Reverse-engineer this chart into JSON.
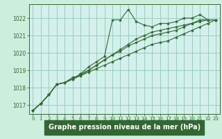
{
  "bg_color": "#cceedd",
  "plot_bg_color": "#d4f0ec",
  "grid_color": "#99ccbb",
  "line_color": "#336633",
  "marker_color": "#336633",
  "xlabel": "Graphe pression niveau de la mer (hPa)",
  "xlabel_fontsize": 7,
  "xlabel_bg": "#33aa55",
  "xlim": [
    -0.5,
    23.5
  ],
  "ylim": [
    1016.5,
    1022.8
  ],
  "yticks": [
    1017,
    1018,
    1019,
    1020,
    1021,
    1022
  ],
  "xticks": [
    0,
    1,
    2,
    3,
    4,
    5,
    6,
    7,
    8,
    9,
    10,
    11,
    12,
    13,
    14,
    15,
    16,
    17,
    18,
    19,
    20,
    21,
    22,
    23
  ],
  "series": [
    [
      1016.7,
      1017.1,
      1017.6,
      1018.2,
      1018.3,
      1018.5,
      1018.8,
      1019.2,
      1019.5,
      1019.8,
      1021.9,
      1021.9,
      1022.5,
      1021.8,
      1021.6,
      1021.5,
      1021.7,
      1021.7,
      1021.8,
      1022.0,
      1022.0,
      1022.2,
      1021.9,
      1021.9
    ],
    [
      1016.7,
      1017.1,
      1017.6,
      1018.2,
      1018.3,
      1018.5,
      1018.8,
      1019.0,
      1019.3,
      1019.6,
      1019.9,
      1020.2,
      1020.5,
      1020.8,
      1021.0,
      1021.2,
      1021.3,
      1021.4,
      1021.5,
      1021.6,
      1021.7,
      1021.8,
      1021.9,
      1021.9
    ],
    [
      1016.7,
      1017.1,
      1017.6,
      1018.2,
      1018.3,
      1018.5,
      1018.7,
      1018.9,
      1019.1,
      1019.3,
      1019.5,
      1019.7,
      1019.9,
      1020.1,
      1020.3,
      1020.5,
      1020.6,
      1020.7,
      1020.9,
      1021.1,
      1021.3,
      1021.5,
      1021.7,
      1021.9
    ],
    [
      1016.7,
      1017.1,
      1017.6,
      1018.2,
      1018.3,
      1018.6,
      1018.7,
      1019.0,
      1019.3,
      1019.6,
      1019.9,
      1020.1,
      1020.4,
      1020.6,
      1020.8,
      1021.0,
      1021.1,
      1021.2,
      1021.3,
      1021.5,
      1021.7,
      1021.9,
      1021.9,
      1021.9
    ]
  ]
}
